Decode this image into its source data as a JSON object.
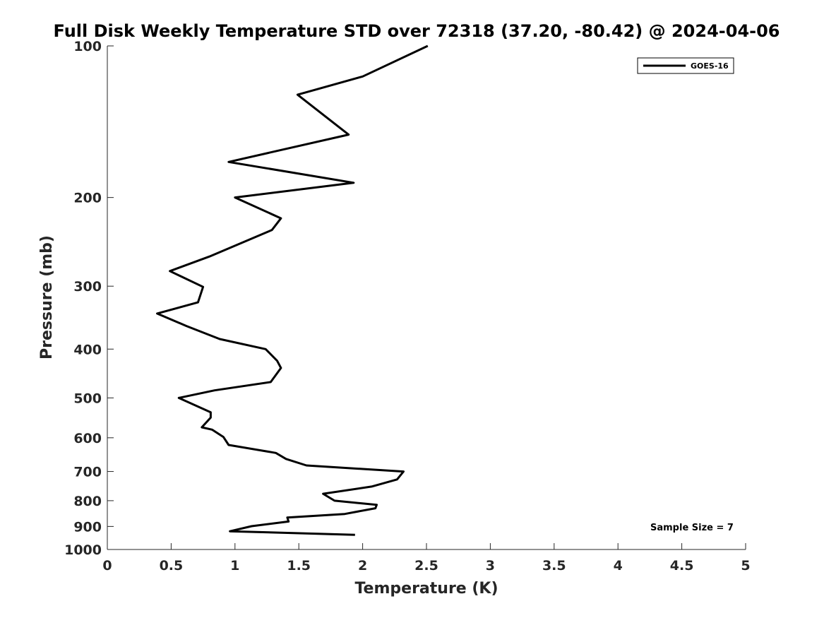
{
  "chart_data": {
    "type": "line",
    "title": "Full Disk Weekly Temperature STD over 72318 (37.20, -80.42) @ 2024-04-06",
    "xlabel": "Temperature (K)",
    "ylabel": "Pressure (mb)",
    "xlim": [
      0,
      5
    ],
    "ylim": [
      100,
      1000
    ],
    "yscale": "log",
    "y_reversed": true,
    "grid": false,
    "legend_position": "top-right",
    "x_ticks": [
      "0",
      "0.5",
      "1",
      "1.5",
      "2",
      "2.5",
      "3",
      "3.5",
      "4",
      "4.5",
      "5"
    ],
    "x_tick_values": [
      0,
      0.5,
      1,
      1.5,
      2,
      2.5,
      3,
      3.5,
      4,
      4.5,
      5
    ],
    "y_ticks": [
      "100",
      "200",
      "300",
      "400",
      "500",
      "600",
      "700",
      "800",
      "900",
      "1000"
    ],
    "y_tick_values": [
      100,
      200,
      300,
      400,
      500,
      600,
      700,
      800,
      900,
      1000
    ],
    "series": [
      {
        "name": "GOES-16",
        "color": "#000000",
        "points": [
          [
            2.51,
            100
          ],
          [
            2.0,
            115
          ],
          [
            1.49,
            125
          ],
          [
            1.89,
            150
          ],
          [
            0.95,
            170
          ],
          [
            1.93,
            187
          ],
          [
            1.0,
            200
          ],
          [
            1.36,
            220
          ],
          [
            1.29,
            232
          ],
          [
            0.8,
            262
          ],
          [
            0.49,
            280
          ],
          [
            0.75,
            301
          ],
          [
            0.71,
            323
          ],
          [
            0.39,
            340
          ],
          [
            0.62,
            360
          ],
          [
            0.88,
            382
          ],
          [
            1.24,
            400
          ],
          [
            1.33,
            422
          ],
          [
            1.36,
            436
          ],
          [
            1.28,
            465
          ],
          [
            0.84,
            483
          ],
          [
            0.56,
            500
          ],
          [
            0.81,
            534
          ],
          [
            0.81,
            547
          ],
          [
            0.74,
            572
          ],
          [
            0.82,
            578
          ],
          [
            0.91,
            598
          ],
          [
            0.95,
            620
          ],
          [
            1.32,
            643
          ],
          [
            1.4,
            661
          ],
          [
            1.56,
            681
          ],
          [
            2.32,
            700
          ],
          [
            2.27,
            726
          ],
          [
            2.07,
            750
          ],
          [
            1.69,
            775
          ],
          [
            1.78,
            800
          ],
          [
            2.11,
            815
          ],
          [
            2.1,
            828
          ],
          [
            1.86,
            850
          ],
          [
            1.41,
            864
          ],
          [
            1.42,
            880
          ],
          [
            1.13,
            899
          ],
          [
            0.96,
            920
          ],
          [
            1.94,
            935
          ]
        ]
      }
    ],
    "annotation": "Sample Size = 7"
  }
}
